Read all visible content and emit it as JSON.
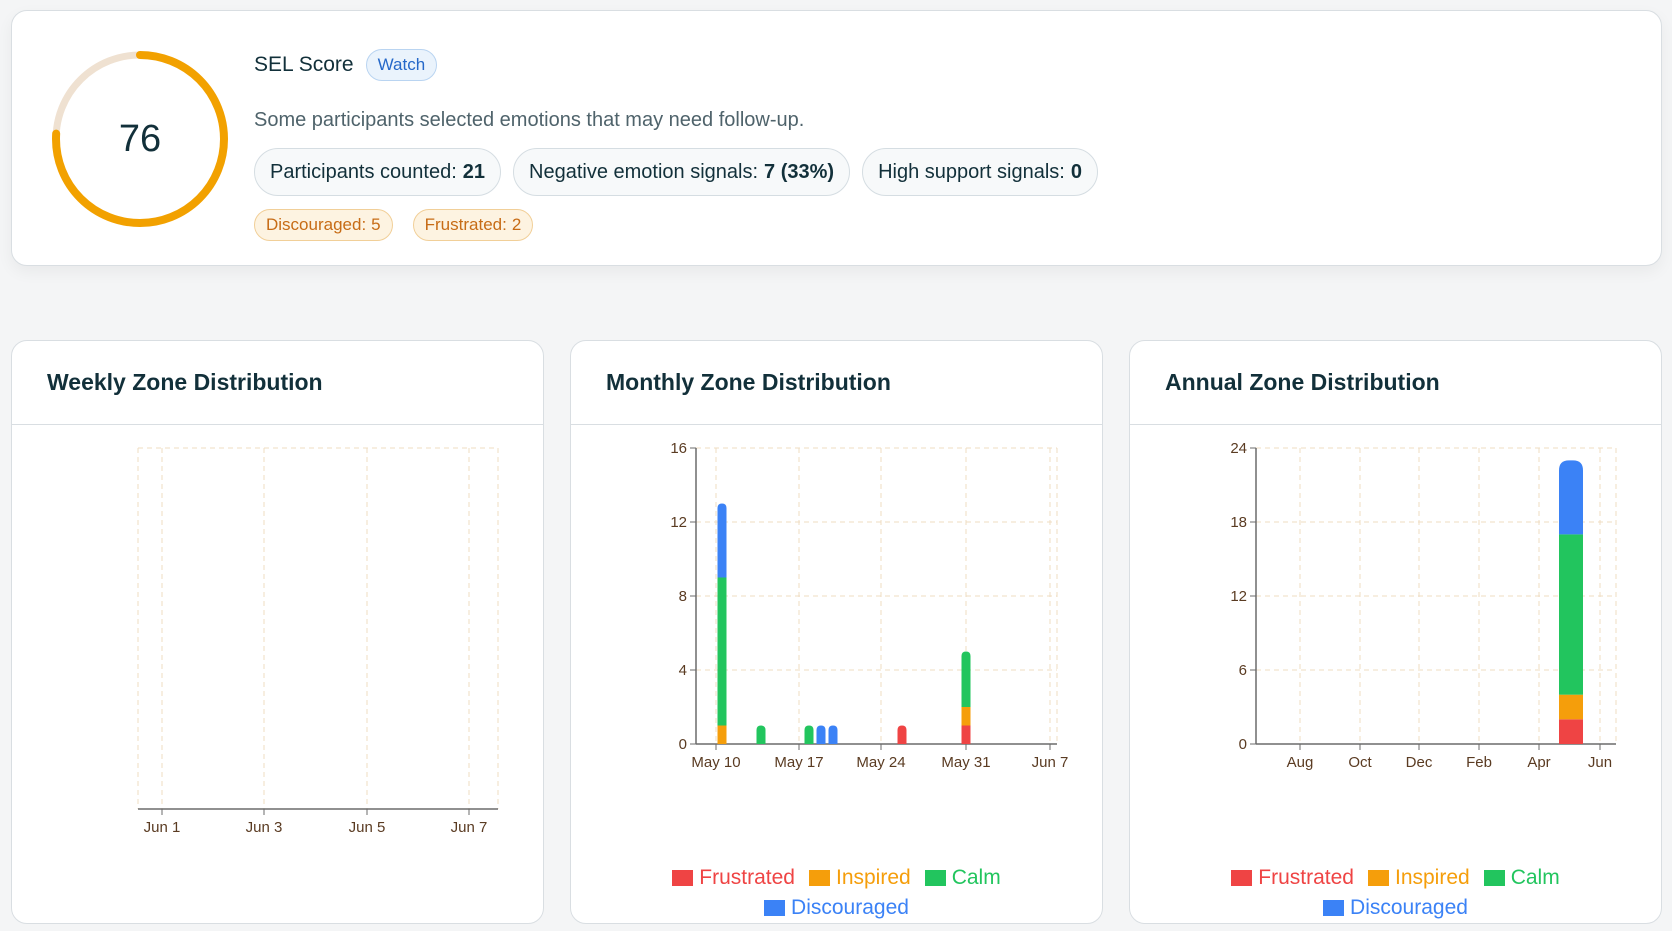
{
  "sel": {
    "score": "76",
    "score_fraction": 0.76,
    "label": "SEL Score",
    "status_badge": "Watch",
    "message": "Some participants selected emotions that may need follow-up.",
    "stats": [
      {
        "label": "Participants counted:",
        "value": "21"
      },
      {
        "label": "Negative emotion signals:",
        "value": "7 (33%)"
      },
      {
        "label": "High support signals:",
        "value": "0"
      }
    ],
    "emotion_tags": [
      {
        "label": "Discouraged:",
        "value": "5"
      },
      {
        "label": "Frustrated:",
        "value": "2"
      }
    ],
    "ring_colors": {
      "fill": "#f2a100",
      "track": "#efe1d1"
    }
  },
  "legend": [
    {
      "name": "Frustrated",
      "color": "#ef4444"
    },
    {
      "name": "Inspired",
      "color": "#f59e0b"
    },
    {
      "name": "Calm",
      "color": "#22c55e"
    },
    {
      "name": "Discouraged",
      "color": "#3b82f6"
    }
  ],
  "chart_data": [
    {
      "type": "bar",
      "title": "Weekly Zone Distribution",
      "stacked": true,
      "x_ticks": [
        "Jun 1",
        "Jun 3",
        "Jun 5",
        "Jun 7"
      ],
      "y_ticks": [],
      "categories": [],
      "series": [],
      "grid": true,
      "legend": "none"
    },
    {
      "type": "bar",
      "title": "Monthly Zone Distribution",
      "stacked": true,
      "x_ticks": [
        "May 10",
        "May 17",
        "May 24",
        "May 31",
        "Jun 7"
      ],
      "y_ticks": [
        "0",
        "4",
        "8",
        "12",
        "16"
      ],
      "ylim": [
        0,
        16
      ],
      "categories": [
        "May 11",
        "May 14",
        "May 18",
        "May 19",
        "May 20",
        "May 27",
        "May 31"
      ],
      "series": [
        {
          "name": "Frustrated",
          "values": [
            0,
            0,
            0,
            0,
            0,
            1,
            1
          ]
        },
        {
          "name": "Inspired",
          "values": [
            1,
            0,
            0,
            0,
            0,
            0,
            1
          ]
        },
        {
          "name": "Calm",
          "values": [
            8,
            1,
            1,
            0,
            0,
            0,
            3
          ]
        },
        {
          "name": "Discouraged",
          "values": [
            4,
            0,
            0,
            1,
            1,
            0,
            0
          ]
        }
      ],
      "grid": true,
      "legend": "bottom"
    },
    {
      "type": "bar",
      "title": "Annual Zone Distribution",
      "stacked": true,
      "x_ticks": [
        "Aug",
        "Oct",
        "Dec",
        "Feb",
        "Apr",
        "Jun"
      ],
      "y_ticks": [
        "0",
        "6",
        "12",
        "18",
        "24"
      ],
      "ylim": [
        0,
        24
      ],
      "categories": [
        "May"
      ],
      "series": [
        {
          "name": "Frustrated",
          "values": [
            2
          ]
        },
        {
          "name": "Inspired",
          "values": [
            2
          ]
        },
        {
          "name": "Calm",
          "values": [
            13
          ]
        },
        {
          "name": "Discouraged",
          "values": [
            6
          ]
        }
      ],
      "grid": true,
      "legend": "bottom"
    }
  ]
}
